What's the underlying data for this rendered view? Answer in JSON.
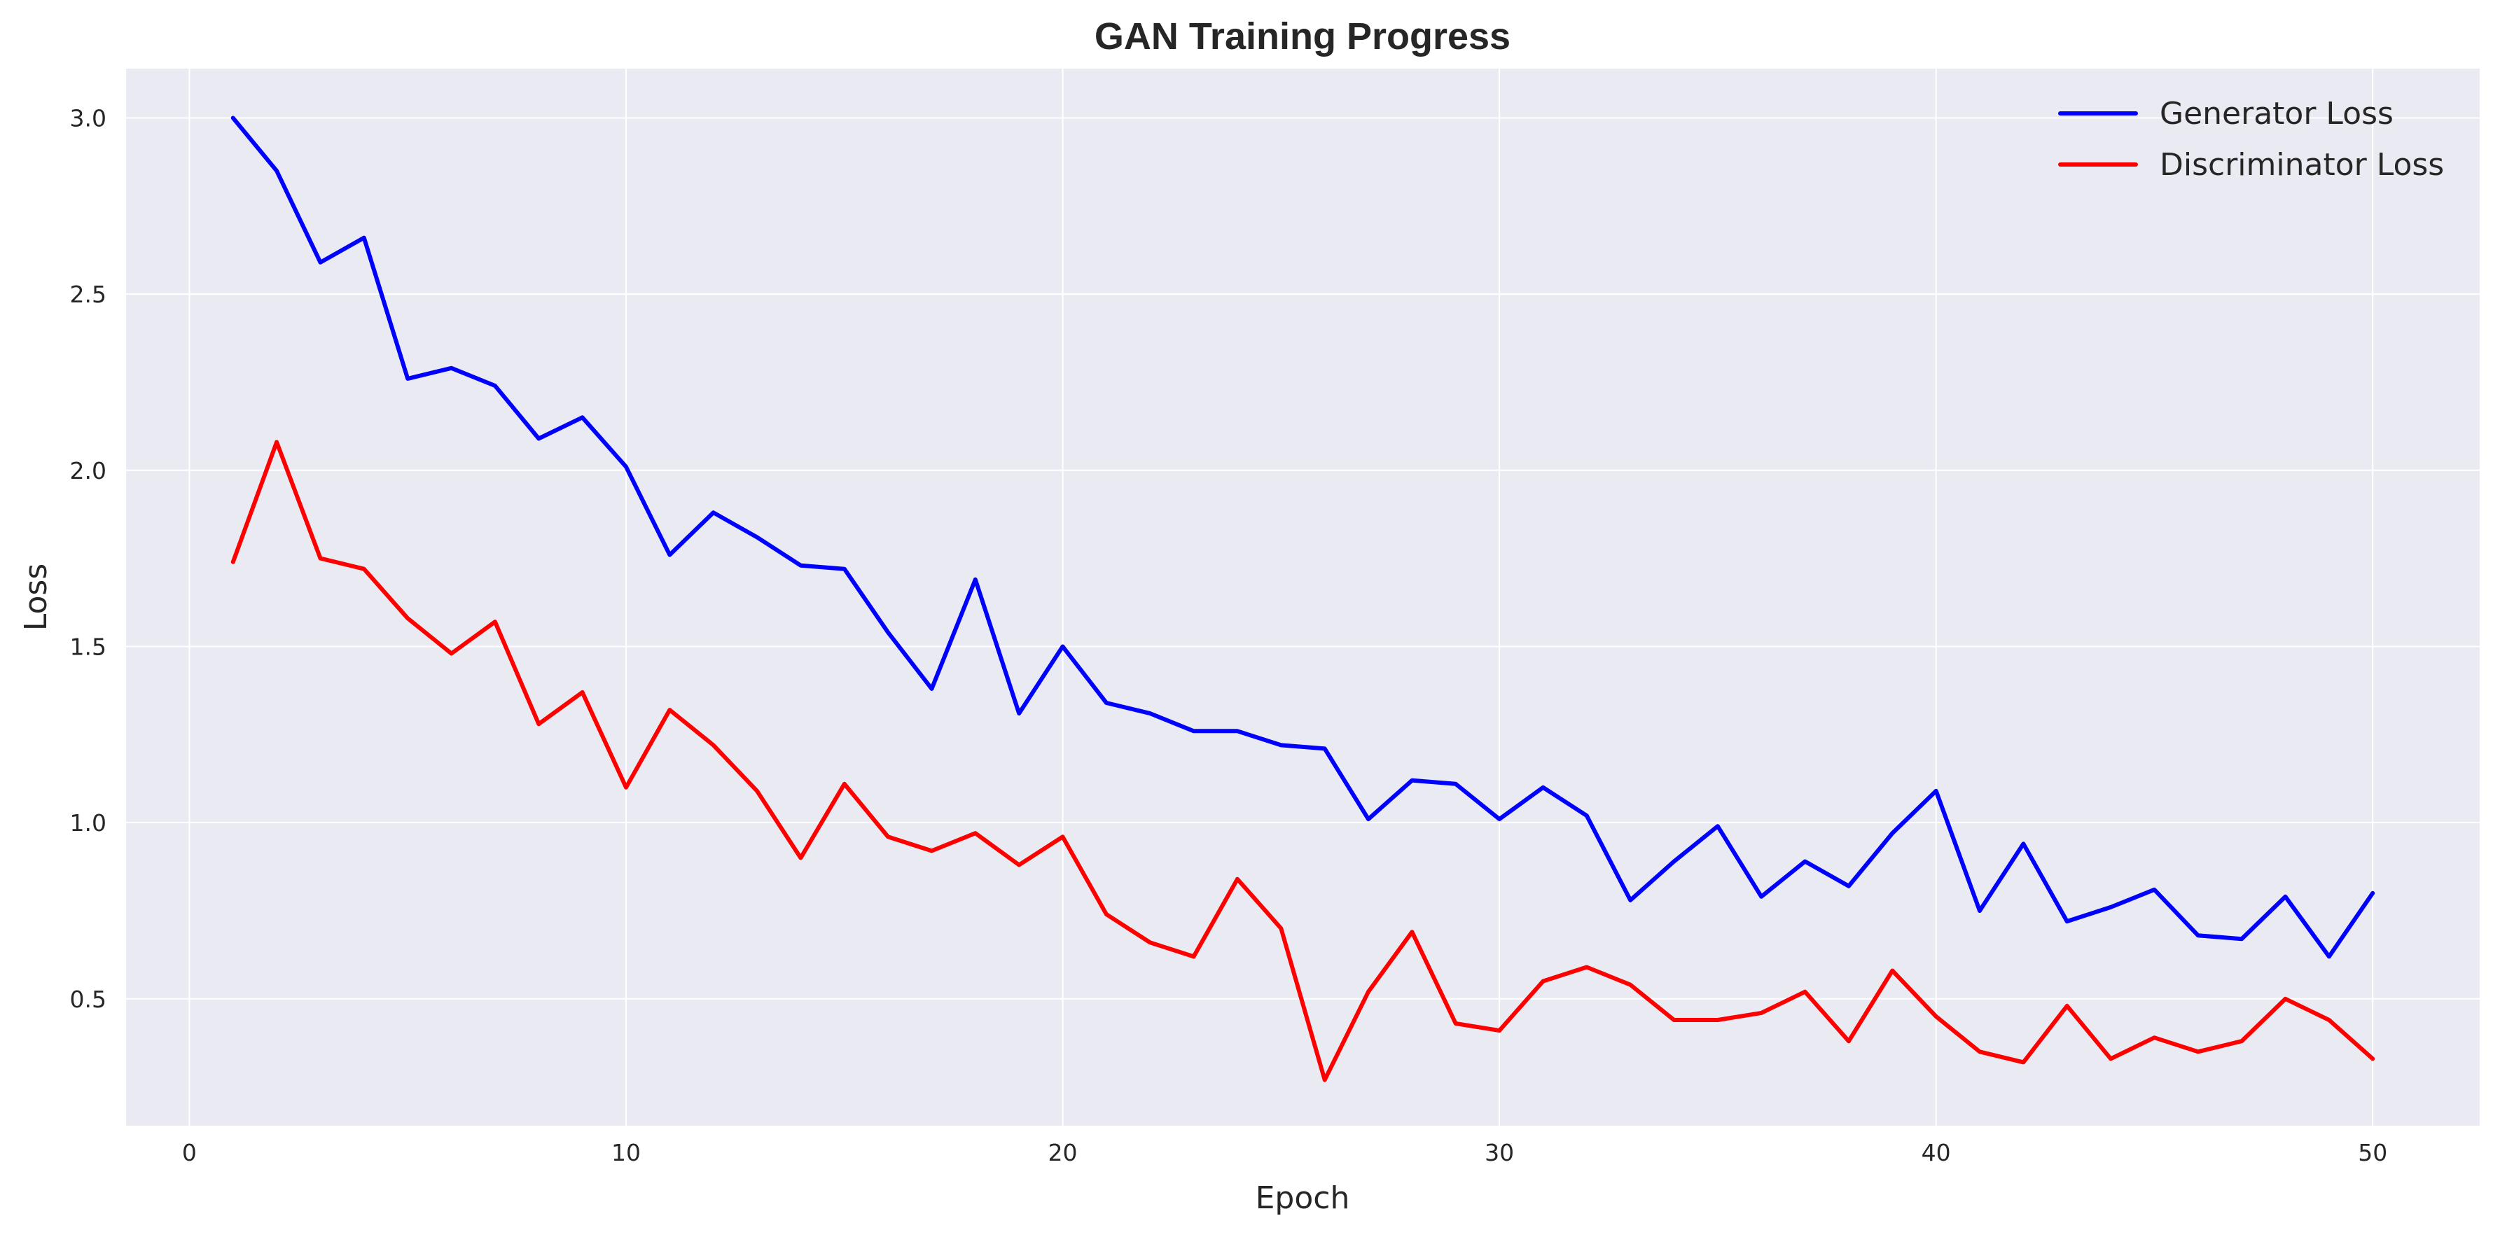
{
  "chart_data": {
    "type": "line",
    "title": "GAN Training Progress",
    "xlabel": "Epoch",
    "ylabel": "Loss",
    "xlim": [
      -1.45,
      52.45
    ],
    "ylim": [
      0.14,
      3.14
    ],
    "xticks": [
      0,
      10,
      20,
      30,
      40,
      50
    ],
    "yticks": [
      0.5,
      1.0,
      1.5,
      2.0,
      2.5,
      3.0
    ],
    "xtick_labels": [
      "0",
      "10",
      "20",
      "30",
      "40",
      "50"
    ],
    "ytick_labels": [
      "0.5",
      "1.0",
      "1.5",
      "2.0",
      "2.5",
      "3.0"
    ],
    "grid": true,
    "legend_position": "top-right",
    "background_color": "#eaeaf2",
    "grid_color": "#ffffff",
    "x": [
      1,
      2,
      3,
      4,
      5,
      6,
      7,
      8,
      9,
      10,
      11,
      12,
      13,
      14,
      15,
      16,
      17,
      18,
      19,
      20,
      21,
      22,
      23,
      24,
      25,
      26,
      27,
      28,
      29,
      30,
      31,
      32,
      33,
      34,
      35,
      36,
      37,
      38,
      39,
      40,
      41,
      42,
      43,
      44,
      45,
      46,
      47,
      48,
      49,
      50
    ],
    "series": [
      {
        "name": "Generator Loss",
        "color": "#0000ff",
        "values": [
          3.0,
          2.85,
          2.59,
          2.66,
          2.26,
          2.29,
          2.24,
          2.09,
          2.15,
          2.01,
          1.76,
          1.88,
          1.81,
          1.73,
          1.72,
          1.54,
          1.38,
          1.69,
          1.31,
          1.5,
          1.34,
          1.31,
          1.26,
          1.26,
          1.22,
          1.21,
          1.01,
          1.12,
          1.11,
          1.01,
          1.1,
          1.02,
          0.78,
          0.89,
          0.99,
          0.79,
          0.89,
          0.82,
          0.97,
          1.09,
          0.75,
          0.94,
          0.72,
          0.76,
          0.81,
          0.68,
          0.67,
          0.79,
          0.62,
          0.8
        ]
      },
      {
        "name": "Discriminator Loss",
        "color": "#ff0000",
        "values": [
          1.74,
          2.08,
          1.75,
          1.72,
          1.58,
          1.48,
          1.57,
          1.28,
          1.37,
          1.1,
          1.32,
          1.22,
          1.09,
          0.9,
          1.11,
          0.96,
          0.92,
          0.97,
          0.88,
          0.96,
          0.74,
          0.66,
          0.62,
          0.84,
          0.7,
          0.27,
          0.52,
          0.69,
          0.43,
          0.41,
          0.55,
          0.59,
          0.54,
          0.44,
          0.44,
          0.46,
          0.52,
          0.38,
          0.58,
          0.45,
          0.35,
          0.32,
          0.48,
          0.33,
          0.39,
          0.35,
          0.38,
          0.5,
          0.44,
          0.33
        ]
      }
    ]
  }
}
